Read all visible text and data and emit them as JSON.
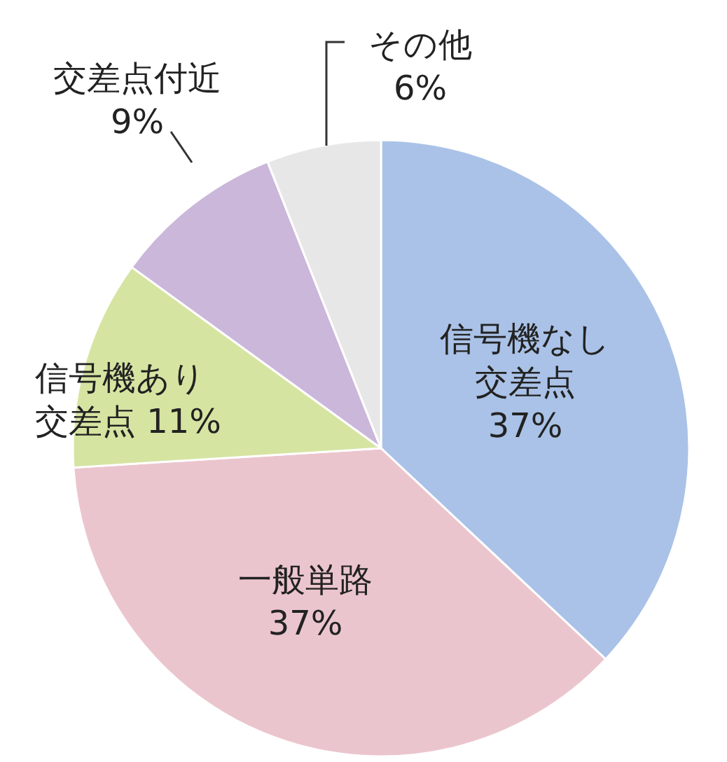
{
  "chart_data": {
    "type": "pie",
    "categories": [
      "信号機なし交差点",
      "一般単路",
      "信号機あり交差点",
      "交差点付近",
      "その他"
    ],
    "values": [
      37,
      37,
      11,
      9,
      6
    ],
    "value_labels": [
      "37%",
      "37%",
      "11%",
      "9%",
      "6%"
    ],
    "colors": [
      "#aac2e7",
      "#ebc5cd",
      "#d6e4a2",
      "#cab7da",
      "#e7e7e7"
    ]
  }
}
